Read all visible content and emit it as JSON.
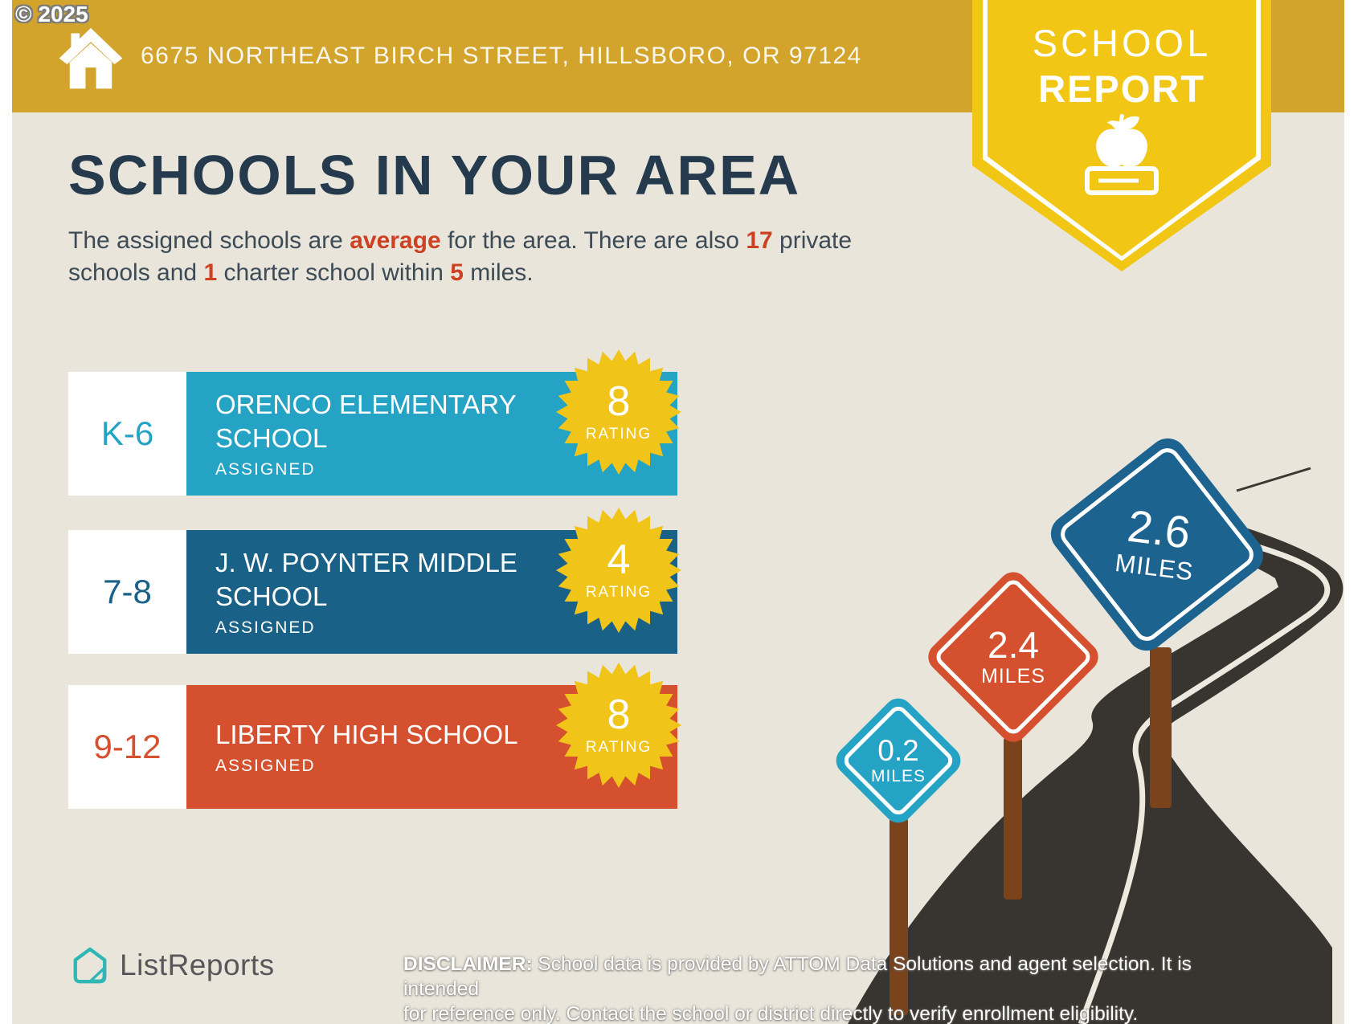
{
  "copyright": "© 2025",
  "banner": {
    "address": "6675 NORTHEAST BIRCH STREET, HILLSBORO, OR 97124",
    "bg": "#D2A42B"
  },
  "ribbon": {
    "line1": "SCHOOL",
    "line2": "REPORT",
    "icon": "apple-on-book-icon",
    "bg": "#F2C614"
  },
  "page": {
    "bg": "#E9E5DB",
    "title": "SCHOOLS IN YOUR AREA"
  },
  "intro": {
    "segments": [
      {
        "text": "The assigned schools are ",
        "bold": false
      },
      {
        "text": "average",
        "bold": true
      },
      {
        "text": " for the area. There are also ",
        "bold": false
      },
      {
        "text": "17",
        "bold": true
      },
      {
        "text": " private schools and ",
        "bold": false
      },
      {
        "text": "1",
        "bold": true
      },
      {
        "text": " charter school within ",
        "bold": false
      },
      {
        "text": "5",
        "bold": true
      },
      {
        "text": " miles.",
        "bold": false
      }
    ]
  },
  "accent_color": "#CE4022",
  "badge_color": "#F0C419",
  "schools": [
    {
      "grades": "K-6",
      "name": "ORENCO ELEMENTARY SCHOOL",
      "status": "ASSIGNED",
      "rating": "8",
      "rating_label": "RATING",
      "color": "#25A3C4"
    },
    {
      "grades": "7-8",
      "name": "J. W. POYNTER MIDDLE SCHOOL",
      "status": "ASSIGNED",
      "rating": "4",
      "rating_label": "RATING",
      "color": "#1A6187"
    },
    {
      "grades": "9-12",
      "name": "LIBERTY HIGH SCHOOL",
      "status": "ASSIGNED",
      "rating": "8",
      "rating_label": "RATING",
      "color": "#D5502E"
    }
  ],
  "signs": [
    {
      "value": "0.2",
      "unit": "MILES",
      "color": "#25A3C4"
    },
    {
      "value": "2.4",
      "unit": "MILES",
      "color": "#D5502E"
    },
    {
      "value": "2.6",
      "unit": "MILES",
      "color": "#1C6390"
    }
  ],
  "road_color": "#38342F",
  "footer": {
    "logo_text": "ListReports",
    "disclaimer_label": "DISCLAIMER:",
    "disclaimer_rest_line1": " School data is provided by ATTOM Data Solutions and agent selection. It is intended",
    "disclaimer_line2": "for reference only. Contact the school or district directly to verify enrollment eligibility."
  }
}
